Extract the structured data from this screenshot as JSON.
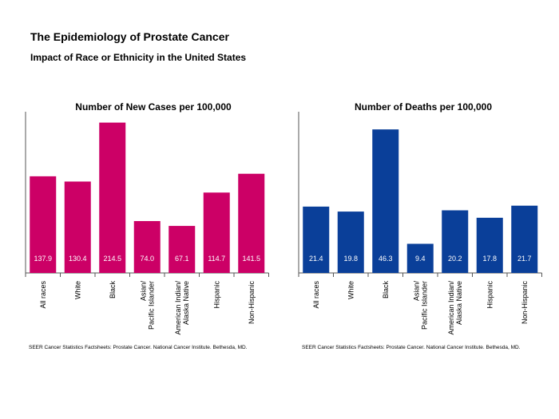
{
  "title": "The Epidemiology of Prostate Cancer",
  "subtitle": "Impact of Race or Ethnicity in the United States",
  "colors": {
    "cases": "#cc0066",
    "deaths": "#0a3f99"
  },
  "chart_data": [
    {
      "type": "bar",
      "title": "Number of New Cases per 100,000",
      "categories": [
        "All races",
        "White",
        "Black",
        "Asian/\nPacific Islander",
        "American Indian/\nAlaska Native",
        "Hispanic",
        "Non-Hispanic"
      ],
      "values": [
        137.9,
        130.4,
        214.5,
        74.0,
        67.1,
        114.7,
        141.5
      ],
      "value_labels": [
        "137.9",
        "130.4",
        "214.5",
        "74.0",
        "67.1",
        "114.7",
        "141.5"
      ],
      "ylim": [
        0,
        230
      ],
      "source": "SEER Cancer Statistics Factsheets: Prostate Cancer. National Cancer Institute. Bethesda, MD."
    },
    {
      "type": "bar",
      "title": "Number of Deaths per 100,000",
      "categories": [
        "All races",
        "White",
        "Black",
        "Asian/\nPacific Islander",
        "American Indian/\nAlaska Native",
        "Hispanic",
        "Non-Hispanic"
      ],
      "values": [
        21.4,
        19.8,
        46.3,
        9.4,
        20.2,
        17.8,
        21.7
      ],
      "value_labels": [
        "21.4",
        "19.8",
        "46.3",
        "9.4",
        "20.2",
        "17.8",
        "21.7"
      ],
      "ylim": [
        0,
        52
      ],
      "source": "SEER Cancer Statistics Factsheets: Prostate Cancer. National Cancer Institute. Bethesda, MD."
    }
  ]
}
